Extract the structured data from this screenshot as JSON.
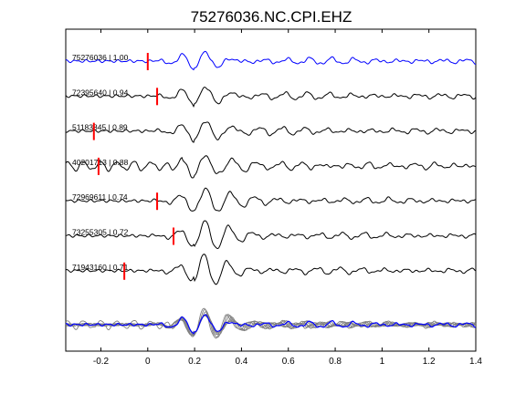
{
  "chart_data": {
    "type": "line",
    "title": "75276036.NC.CPI.EHZ",
    "xlabel": "",
    "ylabel": "",
    "xlim": [
      -0.35,
      1.4
    ],
    "xticks": [
      -0.2,
      0,
      0.2,
      0.4,
      0.6,
      0.8,
      1,
      1.2,
      1.4
    ],
    "xtick_labels": [
      "-0.2",
      "0",
      "0.2",
      "0.4",
      "0.6",
      "0.8",
      "1",
      "1.2",
      "1.4"
    ],
    "grid": false,
    "traces": [
      {
        "label": "75276036 | 1.00",
        "pick_time": 0.0,
        "color": "#0000ff"
      },
      {
        "label": "72395640 | 0.94",
        "pick_time": 0.04,
        "color": "#000000"
      },
      {
        "label": "51183845 | 0.89",
        "pick_time": -0.23,
        "color": "#000000"
      },
      {
        "label": "40201713 | 0.88",
        "pick_time": -0.21,
        "color": "#000000"
      },
      {
        "label": "72969611 | 0.74",
        "pick_time": 0.04,
        "color": "#000000"
      },
      {
        "label": "73255305 | 0.72",
        "pick_time": 0.11,
        "color": "#000000"
      },
      {
        "label": "71943160 | 0.71",
        "pick_time": -0.1,
        "color": "#000000"
      }
    ],
    "stack_colors": {
      "reference": "#0000ff",
      "others": "#808080"
    },
    "pick_color": "#ff0000"
  }
}
